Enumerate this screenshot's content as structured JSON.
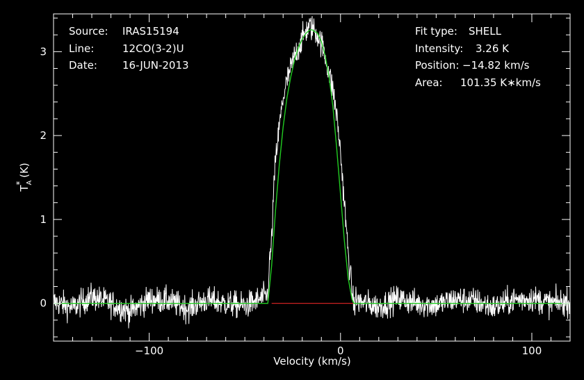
{
  "header": {
    "left": [
      {
        "key": "Source:",
        "value": "IRAS15194"
      },
      {
        "key": "Line:",
        "value": "12CO(3-2)U"
      },
      {
        "key": "Date:",
        "value": "16-JUN-2013"
      }
    ],
    "right": [
      {
        "key": "Fit type:",
        "value": "SHELL"
      },
      {
        "key": "Intensity:",
        "value": "3.26 K"
      },
      {
        "key": "Position:",
        "value": "−14.82 km/s"
      },
      {
        "key": "Area:",
        "value": "101.35 K∗km/s"
      }
    ]
  },
  "chart_data": {
    "type": "line",
    "xlabel": "Velocity (km/s)",
    "ylabel": "T*A (K)",
    "xlim": [
      -150,
      120
    ],
    "ylim": [
      -0.45,
      3.45
    ],
    "xticks": [
      -100,
      0,
      100
    ],
    "xtick_labels": [
      "−100",
      "0",
      "100"
    ],
    "yticks": [
      0,
      1,
      2,
      3
    ],
    "ytick_labels": [
      "0",
      "1",
      "2",
      "3"
    ],
    "grid": false,
    "colors": {
      "background": "#000000",
      "axes": "#ffffff",
      "spectrum": "#ffffff",
      "fit": "#22cc22",
      "baseline": "#cc2222"
    },
    "series": [
      {
        "role": "observed spectrum",
        "x": [
          -150,
          -140,
          -130,
          -120,
          -110,
          -100,
          -90,
          -80,
          -70,
          -60,
          -50,
          -42,
          -38,
          -37,
          -36,
          -35,
          -34,
          -32,
          -30,
          -28,
          -26,
          -24,
          -22,
          -20,
          -18,
          -16,
          -14,
          -12,
          -10,
          -8,
          -6,
          -4,
          -2,
          0,
          2,
          4,
          6,
          7,
          8,
          10,
          20,
          30,
          40,
          50,
          60,
          70,
          80,
          90,
          100,
          110,
          120
        ],
        "y": [
          0.02,
          -0.05,
          0.08,
          0.0,
          -0.1,
          0.05,
          0.03,
          -0.06,
          0.04,
          0.0,
          -0.03,
          0.05,
          0.1,
          0.5,
          0.75,
          1.3,
          1.7,
          2.1,
          2.45,
          2.65,
          2.8,
          2.95,
          3.05,
          3.15,
          3.25,
          3.3,
          3.27,
          3.2,
          3.1,
          2.95,
          2.75,
          2.55,
          2.25,
          1.8,
          1.2,
          0.6,
          0.15,
          -0.05,
          0.05,
          0.02,
          -0.04,
          0.06,
          0.0,
          -0.02,
          0.05,
          0.03,
          -0.05,
          0.04,
          0.06,
          0.0,
          0.02
        ]
      },
      {
        "role": "fit",
        "x": [
          -150,
          -38,
          -36,
          -34,
          -32,
          -30,
          -28,
          -26,
          -24,
          -22,
          -20,
          -18,
          -16,
          -14.82,
          -12,
          -10,
          -8,
          -6,
          -4,
          -2,
          0,
          2,
          4,
          6,
          7,
          120
        ],
        "y": [
          0,
          0,
          0.45,
          1.1,
          1.65,
          2.1,
          2.45,
          2.7,
          2.9,
          3.05,
          3.15,
          3.22,
          3.26,
          3.26,
          3.22,
          3.12,
          2.95,
          2.7,
          2.35,
          1.85,
          1.3,
          0.75,
          0.3,
          0.05,
          0,
          0
        ]
      },
      {
        "role": "baseline window",
        "x": [
          -36,
          7
        ],
        "y": [
          0,
          0
        ]
      }
    ],
    "noise_rms": 0.08
  }
}
